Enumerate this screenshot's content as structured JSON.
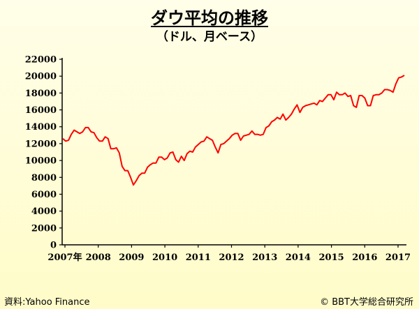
{
  "header": {
    "title": "ダウ平均の推移",
    "subtitle": "（ドル、月ベース）"
  },
  "footer": {
    "source": "資料:Yahoo Finance",
    "credit": "© BBT大学総合研究所"
  },
  "colors": {
    "background": "#fffdd6",
    "line": "#ff0000",
    "axis": "#000000"
  },
  "chart_data": {
    "type": "line",
    "title": "ダウ平均の推移",
    "subtitle": "（ドル、月ベース）",
    "xlabel": "",
    "ylabel": "",
    "ylim": [
      0,
      22000
    ],
    "yticks": [
      0,
      2000,
      4000,
      6000,
      8000,
      10000,
      12000,
      14000,
      16000,
      18000,
      20000,
      22000
    ],
    "xtick_labels": [
      "2007年",
      "2008",
      "2009",
      "2010",
      "2011",
      "2012",
      "2013",
      "2014",
      "2015",
      "2016",
      "2017"
    ],
    "grid": false,
    "legend": "none",
    "series": [
      {
        "values": [
          12600,
          12300,
          12400,
          13100,
          13600,
          13400,
          13200,
          13400,
          13900,
          13900,
          13400,
          13300,
          12700,
          12300,
          12300,
          12800,
          12600,
          11400,
          11400,
          11500,
          10900,
          9300,
          8800,
          8800,
          8000,
          7100,
          7600,
          8200,
          8500,
          8500,
          9200,
          9500,
          9700,
          9700,
          10400,
          10400,
          10100,
          10300,
          10900,
          11000,
          10100,
          9800,
          10500,
          10000,
          10800,
          11100,
          11000,
          11600,
          11900,
          12200,
          12300,
          12800,
          12600,
          12400,
          11600,
          10900,
          11900,
          12000,
          12300,
          12600,
          13000,
          13200,
          13200,
          12400,
          12900,
          13000,
          13100,
          13500,
          13100,
          13100,
          13000,
          13100,
          13900,
          14100,
          14600,
          14800,
          15100,
          14900,
          15500,
          14800,
          15100,
          15500,
          16100,
          16600,
          15700,
          16300,
          16500,
          16600,
          16700,
          16800,
          16600,
          17100,
          17000,
          17400,
          17800,
          17800,
          17200,
          18100,
          17800,
          17800,
          18000,
          17600,
          17700,
          16500,
          16300,
          17700,
          17700,
          17400,
          16500,
          16500,
          17700,
          17800,
          17800,
          18000,
          18400,
          18400,
          18300,
          18100,
          19100,
          19800,
          19900,
          20100
        ]
      }
    ]
  }
}
